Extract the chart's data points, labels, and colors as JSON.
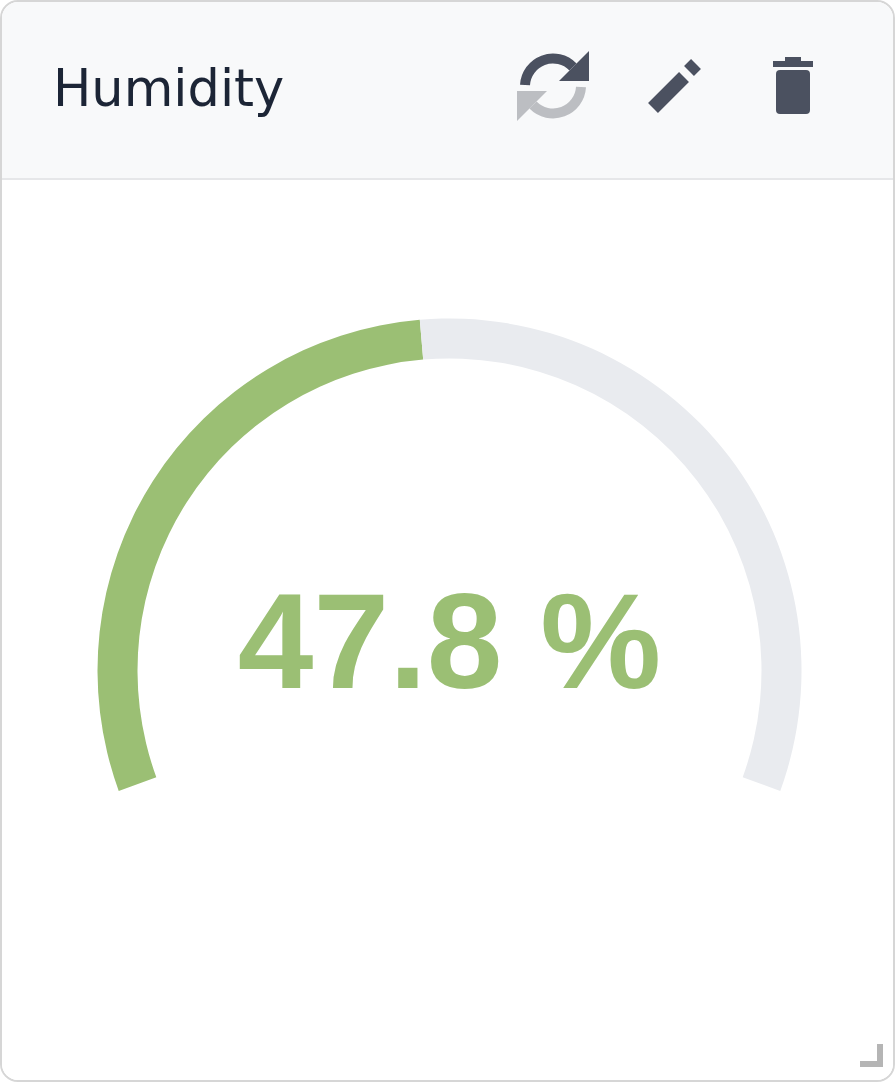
{
  "chart_data": {
    "type": "donut",
    "title": "Humidity",
    "categories": [
      null,
      null
    ],
    "values": [
      47.8,
      52.2
    ],
    "colors": [
      "#9bbf74",
      "#e9ebef"
    ],
    "annotations": [
      "47.8 %"
    ]
  }
}
